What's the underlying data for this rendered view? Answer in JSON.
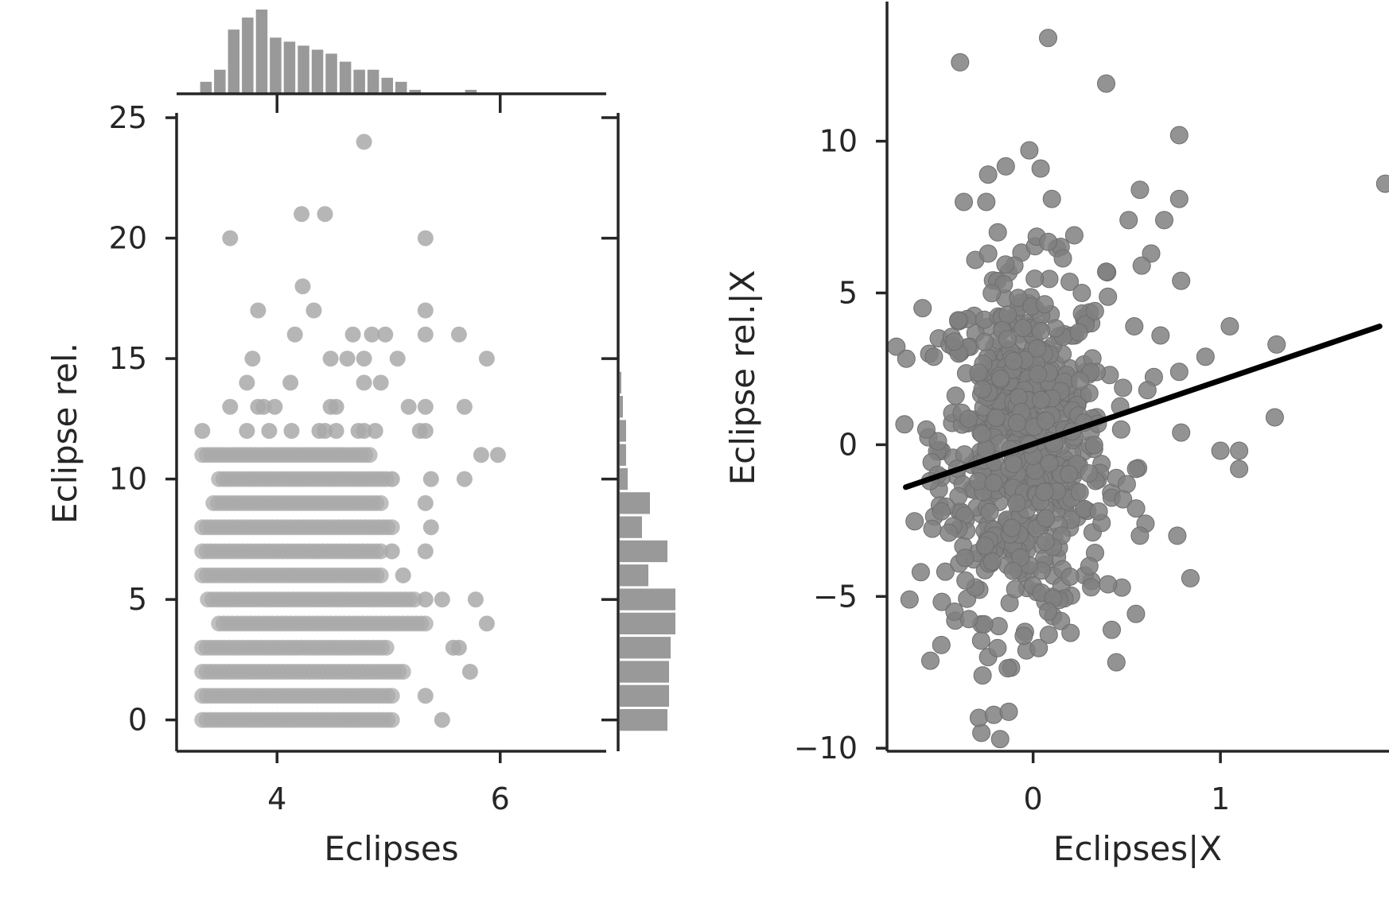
{
  "colors": {
    "scatter_left": "#a9a9a9",
    "scatter_right": "#808080",
    "hist": "#999999",
    "fit_line": "#000000",
    "axis": "#262626"
  },
  "chart_data": [
    {
      "type": "scatter",
      "subtype": "joint-plot-with-marginal-histograms",
      "xlabel": "Eclipses",
      "ylabel": "Eclipse rel.",
      "xlim": [
        3.1,
        6.95
      ],
      "ylim": [
        -1.3,
        25.2
      ],
      "x_ticks": [
        4,
        6
      ],
      "y_ticks": [
        0,
        5,
        10,
        15,
        20,
        25
      ],
      "grid": false,
      "points": [
        [
          4.78,
          24
        ],
        [
          4.22,
          21
        ],
        [
          4.43,
          21
        ],
        [
          3.58,
          20
        ],
        [
          5.33,
          20
        ],
        [
          4.23,
          18
        ],
        [
          3.83,
          17
        ],
        [
          4.33,
          17
        ],
        [
          5.33,
          17
        ],
        [
          4.16,
          16
        ],
        [
          4.68,
          16
        ],
        [
          4.85,
          16
        ],
        [
          4.97,
          16
        ],
        [
          5.33,
          16
        ],
        [
          5.63,
          16
        ],
        [
          3.78,
          15
        ],
        [
          4.48,
          15
        ],
        [
          4.63,
          15
        ],
        [
          4.78,
          15
        ],
        [
          5.08,
          15
        ],
        [
          5.88,
          15
        ],
        [
          3.73,
          14
        ],
        [
          4.12,
          14
        ],
        [
          4.78,
          14
        ],
        [
          4.93,
          14
        ],
        [
          3.58,
          13
        ],
        [
          3.83,
          13
        ],
        [
          3.88,
          13
        ],
        [
          3.98,
          13
        ],
        [
          4.48,
          13
        ],
        [
          4.53,
          13
        ],
        [
          5.18,
          13
        ],
        [
          5.33,
          13
        ],
        [
          5.68,
          13
        ],
        [
          3.33,
          12
        ],
        [
          3.73,
          12
        ],
        [
          3.93,
          12
        ],
        [
          4.13,
          12
        ],
        [
          4.38,
          12
        ],
        [
          4.43,
          12
        ],
        [
          4.53,
          12
        ],
        [
          4.73,
          12
        ],
        [
          4.78,
          12
        ],
        [
          4.88,
          12
        ],
        [
          5.28,
          12
        ],
        [
          5.33,
          12
        ],
        [
          5.98,
          11
        ],
        [
          5.83,
          11
        ],
        [
          5.03,
          10
        ],
        [
          5.38,
          10
        ],
        [
          5.68,
          10
        ],
        [
          5.33,
          9
        ],
        [
          5.38,
          8
        ],
        [
          5.33,
          7
        ],
        [
          5.03,
          7
        ],
        [
          5.13,
          6
        ],
        [
          5.78,
          5
        ],
        [
          5.33,
          5
        ],
        [
          5.48,
          5
        ],
        [
          5.88,
          4
        ],
        [
          5.63,
          3
        ],
        [
          5.58,
          3
        ],
        [
          5.73,
          2
        ],
        [
          5.33,
          1
        ],
        [
          5.48,
          0
        ]
      ],
      "dense_rows": [
        {
          "y": 11,
          "x_min": 3.33,
          "x_max": 4.83
        },
        {
          "y": 10,
          "x_min": 3.48,
          "x_max": 4.98
        },
        {
          "y": 9,
          "x_min": 3.43,
          "x_max": 4.93
        },
        {
          "y": 8,
          "x_min": 3.33,
          "x_max": 5.03
        },
        {
          "y": 7,
          "x_min": 3.33,
          "x_max": 4.93
        },
        {
          "y": 6,
          "x_min": 3.33,
          "x_max": 4.93
        },
        {
          "y": 5,
          "x_min": 3.38,
          "x_max": 5.23
        },
        {
          "y": 4,
          "x_min": 3.48,
          "x_max": 5.33
        },
        {
          "y": 3,
          "x_min": 3.33,
          "x_max": 4.98
        },
        {
          "y": 2,
          "x_min": 3.33,
          "x_max": 5.13
        },
        {
          "y": 1,
          "x_min": 3.33,
          "x_max": 5.03
        },
        {
          "y": 0,
          "x_min": 3.33,
          "x_max": 5.03
        }
      ],
      "marginal_x_hist": {
        "bin_start": 3.3,
        "bin_width": 0.125,
        "counts": [
          3,
          6,
          16,
          19,
          21,
          14,
          13,
          12,
          11,
          10,
          8,
          6,
          6,
          4,
          3,
          1,
          0,
          0,
          0,
          1
        ]
      },
      "marginal_y_hist": {
        "bins": [
          {
            "y0": -0.5,
            "y1": 0.5,
            "count": 30
          },
          {
            "y0": 0.5,
            "y1": 1.5,
            "count": 31
          },
          {
            "y0": 1.5,
            "y1": 2.5,
            "count": 31
          },
          {
            "y0": 2.5,
            "y1": 3.5,
            "count": 32
          },
          {
            "y0": 3.5,
            "y1": 4.5,
            "count": 35
          },
          {
            "y0": 4.5,
            "y1": 5.5,
            "count": 35
          },
          {
            "y0": 5.5,
            "y1": 6.5,
            "count": 18
          },
          {
            "y0": 6.5,
            "y1": 7.5,
            "count": 30
          },
          {
            "y0": 7.5,
            "y1": 8.5,
            "count": 14
          },
          {
            "y0": 8.5,
            "y1": 9.5,
            "count": 19
          },
          {
            "y0": 9.5,
            "y1": 10.5,
            "count": 5
          },
          {
            "y0": 10.5,
            "y1": 11.5,
            "count": 4
          },
          {
            "y0": 11.5,
            "y1": 12.5,
            "count": 4
          },
          {
            "y0": 12.5,
            "y1": 13.5,
            "count": 2
          },
          {
            "y0": 13.5,
            "y1": 14.5,
            "count": 1
          }
        ]
      }
    },
    {
      "type": "scatter",
      "subtype": "partial-regression-with-fit-line",
      "xlabel": "Eclipses|X",
      "ylabel": "Eclipse rel.|X",
      "xlim": [
        -0.78,
        1.9
      ],
      "ylim": [
        -10.1,
        14.6
      ],
      "x_ticks": [
        0,
        1
      ],
      "y_ticks": [
        -10,
        -5,
        0,
        5,
        10
      ],
      "grid": false,
      "fit_line": {
        "x": [
          -0.68,
          1.85
        ],
        "y": [
          -1.4,
          3.9
        ]
      },
      "points": [
        [
          0.08,
          13.4
        ],
        [
          -0.39,
          12.6
        ],
        [
          0.39,
          11.9
        ],
        [
          0.78,
          10.2
        ],
        [
          1.88,
          8.6
        ],
        [
          -0.02,
          9.7
        ],
        [
          0.04,
          9.1
        ],
        [
          -0.24,
          8.9
        ],
        [
          -0.37,
          8.0
        ],
        [
          -0.25,
          8.0
        ],
        [
          0.57,
          8.4
        ],
        [
          0.78,
          8.1
        ],
        [
          0.1,
          8.1
        ],
        [
          0.51,
          7.4
        ],
        [
          0.7,
          7.4
        ],
        [
          0.22,
          6.9
        ],
        [
          0.63,
          6.3
        ],
        [
          0.79,
          5.4
        ],
        [
          0.58,
          5.9
        ],
        [
          0.39,
          5.7
        ],
        [
          -0.59,
          4.5
        ],
        [
          -0.4,
          4.1
        ],
        [
          0.54,
          3.9
        ],
        [
          0.68,
          3.6
        ],
        [
          1.05,
          3.9
        ],
        [
          1.3,
          3.3
        ],
        [
          0.92,
          2.9
        ],
        [
          0.78,
          2.4
        ],
        [
          0.61,
          1.8
        ],
        [
          1.29,
          0.9
        ],
        [
          0.79,
          0.4
        ],
        [
          0.47,
          0.5
        ],
        [
          1.0,
          -0.2
        ],
        [
          1.1,
          -0.2
        ],
        [
          1.1,
          -0.8
        ],
        [
          0.55,
          -0.8
        ],
        [
          0.5,
          -1.3
        ],
        [
          0.48,
          -1.8
        ],
        [
          0.55,
          -2.1
        ],
        [
          0.6,
          -2.6
        ],
        [
          0.77,
          -3.0
        ],
        [
          0.84,
          -4.4
        ],
        [
          0.57,
          -3.0
        ],
        [
          -0.6,
          -4.2
        ],
        [
          -0.66,
          -5.1
        ],
        [
          -0.42,
          -5.5
        ],
        [
          -0.49,
          -6.6
        ],
        [
          -0.24,
          -7.0
        ],
        [
          -0.27,
          -7.6
        ],
        [
          -0.19,
          -6.7
        ],
        [
          -0.29,
          -9.0
        ],
        [
          -0.21,
          -8.9
        ],
        [
          -0.13,
          -8.8
        ],
        [
          0.03,
          -6.7
        ],
        [
          0.2,
          -6.2
        ],
        [
          0.42,
          -6.1
        ],
        [
          0.4,
          -4.6
        ],
        [
          0.31,
          -4.7
        ],
        [
          -0.45,
          -2.9
        ],
        [
          -0.49,
          -2.2
        ],
        [
          -0.55,
          -1.2
        ],
        [
          -0.57,
          0.5
        ],
        [
          -0.53,
          2.9
        ],
        [
          -0.42,
          3.4
        ],
        [
          0.35,
          -2.2
        ],
        [
          0.3,
          1.7
        ],
        [
          0.25,
          2.1
        ],
        [
          0.3,
          -4.0
        ],
        [
          -0.05,
          -6.3
        ],
        [
          0.08,
          -5.5
        ],
        [
          0.33,
          4.4
        ],
        [
          0.26,
          5.0
        ]
      ],
      "dense_cloud": {
        "x_center": -0.05,
        "y_center": 0.0,
        "x_spread": 0.22,
        "y_spread": 2.8,
        "count": 650
      }
    }
  ]
}
